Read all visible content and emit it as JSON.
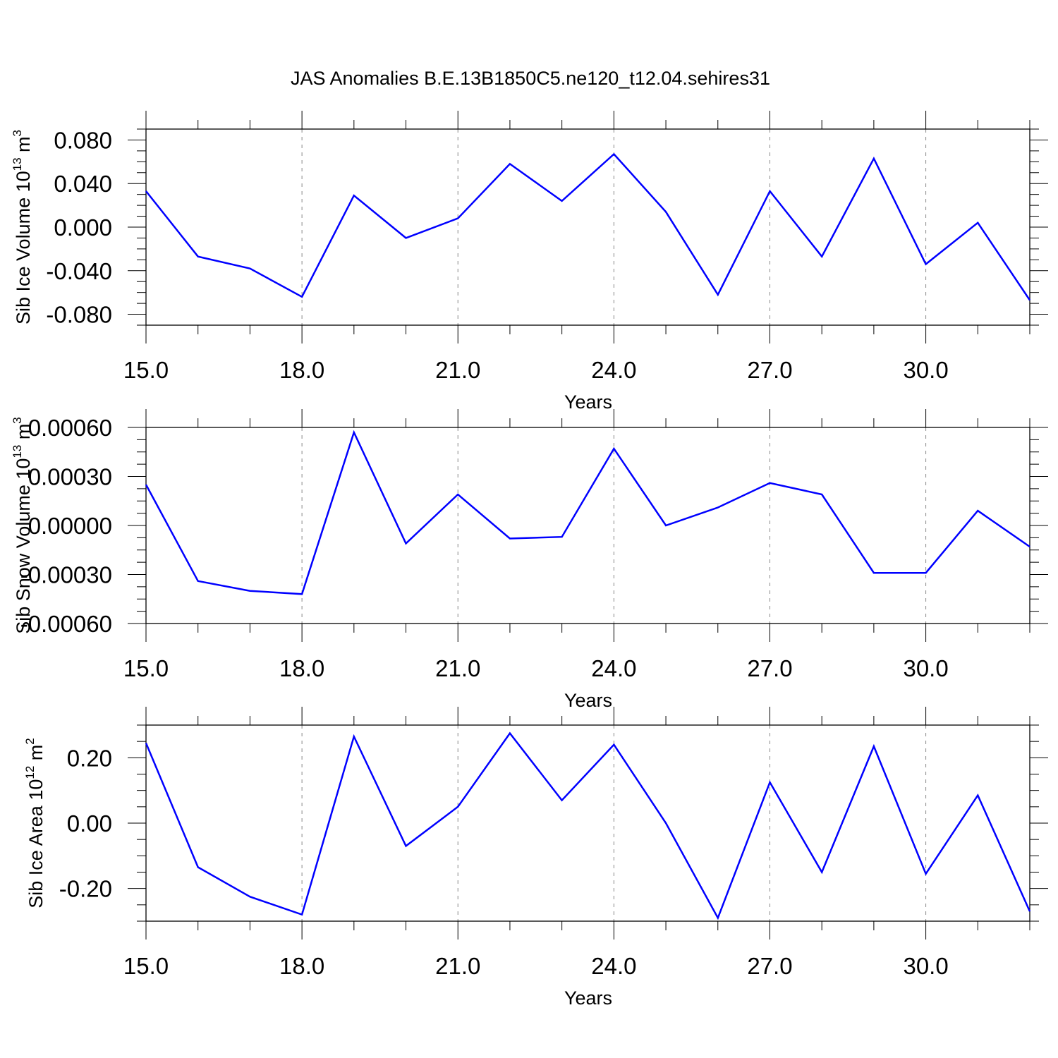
{
  "title": "JAS Anomalies B.E.13B1850C5.ne120_t12.04.sehires31",
  "colors": {
    "series": "#0000ff",
    "axis": "#000000",
    "grid": "#888888"
  },
  "chart_data": [
    {
      "type": "line",
      "xlabel": "Years",
      "ylabel": "Sib Ice Volume",
      "ylabel_unit_base": "10",
      "ylabel_unit_exp": "13",
      "ylabel_unit": "m",
      "ylabel_unit_sup": "3",
      "xlim": [
        15,
        32
      ],
      "ylim": [
        -0.09,
        0.09
      ],
      "xticks": [
        "15.0",
        "18.0",
        "21.0",
        "24.0",
        "27.0",
        "30.0"
      ],
      "yticks": [
        "0.080",
        "0.040",
        "0.000",
        "-0.040",
        "-0.080"
      ],
      "x": [
        15,
        16,
        17,
        18,
        19,
        20,
        21,
        22,
        23,
        24,
        25,
        26,
        27,
        28,
        29,
        30,
        31,
        32
      ],
      "y": [
        0.033,
        -0.027,
        -0.038,
        -0.064,
        0.029,
        -0.01,
        0.008,
        0.058,
        0.024,
        0.067,
        0.014,
        -0.062,
        0.033,
        -0.027,
        0.063,
        -0.034,
        0.004,
        -0.067
      ]
    },
    {
      "type": "line",
      "xlabel": "Years",
      "ylabel": "Sib Snow Volume",
      "ylabel_unit_base": "10",
      "ylabel_unit_exp": "13",
      "ylabel_unit": "m",
      "ylabel_unit_sup": "3",
      "xlim": [
        15,
        32
      ],
      "ylim": [
        -0.0006,
        0.0006
      ],
      "xticks": [
        "15.0",
        "18.0",
        "21.0",
        "24.0",
        "27.0",
        "30.0"
      ],
      "yticks": [
        "0.00060",
        "0.00030",
        "0.00000",
        "-0.00030",
        "-0.00060"
      ],
      "x": [
        15,
        16,
        17,
        18,
        19,
        20,
        21,
        22,
        23,
        24,
        25,
        26,
        27,
        28,
        29,
        30,
        31,
        32
      ],
      "y": [
        0.00025,
        -0.00034,
        -0.0004,
        -0.00042,
        0.00057,
        -0.00011,
        0.00019,
        -8e-05,
        -7e-05,
        0.00047,
        0.0,
        0.00011,
        0.00026,
        0.00019,
        -0.00029,
        -0.00029,
        9e-05,
        -0.00013
      ]
    },
    {
      "type": "line",
      "xlabel": "Years",
      "ylabel": "Sib Ice Area",
      "ylabel_unit_base": "10",
      "ylabel_unit_exp": "12",
      "ylabel_unit": "m",
      "ylabel_unit_sup": "2",
      "xlim": [
        15,
        32
      ],
      "ylim": [
        -0.3,
        0.3
      ],
      "xticks": [
        "15.0",
        "18.0",
        "21.0",
        "24.0",
        "27.0",
        "30.0"
      ],
      "yticks": [
        "0.20",
        "0.00",
        "-0.20"
      ],
      "x": [
        15,
        16,
        17,
        18,
        19,
        20,
        21,
        22,
        23,
        24,
        25,
        26,
        27,
        28,
        29,
        30,
        31,
        32
      ],
      "y": [
        0.245,
        -0.135,
        -0.225,
        -0.28,
        0.265,
        -0.07,
        0.05,
        0.275,
        0.07,
        0.24,
        0.0,
        -0.29,
        0.125,
        -0.15,
        0.235,
        -0.155,
        0.085,
        -0.27
      ]
    }
  ]
}
